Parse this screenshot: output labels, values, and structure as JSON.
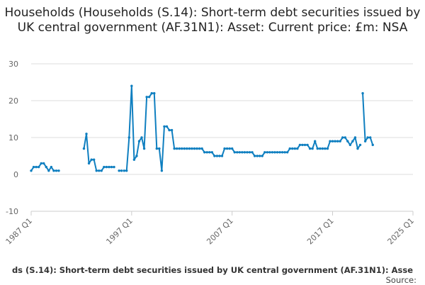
{
  "chart_title": "Households (Households (S.14): Short-term debt securities issued by UK central government (AF.31N1): Asset: Current price: £m: NSA",
  "footer": {
    "series_label": "ds (S.14): Short-term debt securities issued by UK central government (AF.31N1): Asse",
    "source_label": "Source:"
  },
  "colors": {
    "line": "#0f7fc0",
    "grid": "#dddddd",
    "axis_text": "#666666"
  },
  "chart_data": {
    "type": "line",
    "title": "Households (Households (S.14): Short-term debt securities issued by UK central government (AF.31N1): Asset: Current price: £m: NSA",
    "xlabel": "",
    "ylabel": "",
    "ylim": [
      -10,
      30
    ],
    "yticks": [
      -10,
      0,
      10,
      20,
      30
    ],
    "xlim": [
      "1987 Q1",
      "2025 Q1"
    ],
    "xticks": [
      "1987 Q1",
      "1997 Q1",
      "2007 Q1",
      "2017 Q1",
      "2025 Q1"
    ],
    "grid": true,
    "legend": "none",
    "segments": [
      {
        "start": "1987 Q1",
        "values": [
          1,
          2,
          2,
          2,
          3,
          3,
          2,
          1,
          2,
          1,
          1,
          1
        ]
      },
      {
        "start": "1992 Q2",
        "values": [
          7,
          11,
          3,
          4,
          4,
          1,
          1,
          1,
          2,
          2,
          2,
          2,
          2
        ]
      },
      {
        "start": "1995 Q4",
        "values": [
          1,
          1
        ]
      },
      {
        "start": "1996 Q2",
        "values": [
          1,
          1,
          10,
          24,
          4,
          5,
          9,
          10,
          7,
          21,
          21,
          22,
          22,
          7,
          7,
          1,
          13,
          13,
          12,
          12,
          7,
          7,
          7,
          7,
          7,
          7,
          7,
          7,
          7,
          7,
          7,
          7,
          6,
          6,
          6,
          6,
          5,
          5,
          5,
          5,
          7,
          7,
          7,
          7,
          6,
          6,
          6,
          6,
          6,
          6,
          6,
          6,
          5,
          5,
          5,
          5,
          6,
          6,
          6,
          6,
          6,
          6,
          6,
          6,
          6,
          6,
          7,
          7,
          7,
          7,
          8,
          8,
          8,
          8,
          7,
          7,
          9,
          7,
          7,
          7,
          7,
          7,
          9,
          9,
          9,
          9,
          9,
          10,
          10,
          9,
          8,
          9,
          10,
          7,
          8
        ]
      },
      {
        "start": "2020 Q1",
        "values": [
          22,
          9,
          10,
          10,
          8
        ]
      }
    ]
  }
}
